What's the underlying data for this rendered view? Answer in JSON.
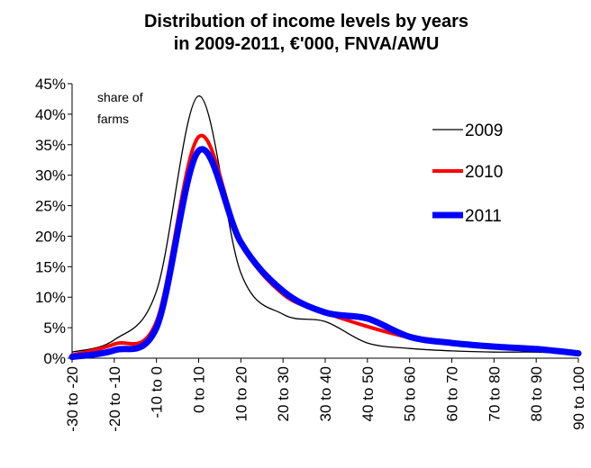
{
  "chart_data": {
    "type": "line",
    "title": "Distribution of income levels by years",
    "subtitle": "in 2009-2011, €'000, FNVA/AWU",
    "annotation": "share of farms",
    "categories": [
      "-30 to -20",
      "-20 to -10",
      "-10 to 0",
      "0 to 10",
      "10 to 20",
      "20 to 30",
      "30 to 40",
      "40 to 50",
      "50 to 60",
      "60 to 70",
      "70 to 80",
      "80 to 90",
      "90 to 100"
    ],
    "y_ticks": [
      "0%",
      "5%",
      "10%",
      "15%",
      "20%",
      "25%",
      "30%",
      "35%",
      "40%",
      "45%"
    ],
    "ylim": [
      0,
      45
    ],
    "grid": false,
    "legend_position": "right",
    "series": [
      {
        "name": "2009",
        "color": "#000000",
        "width": 1.3,
        "values": [
          1.0,
          3.0,
          11.0,
          43.0,
          14.0,
          7.2,
          6.0,
          2.5,
          1.6,
          1.2,
          1.0,
          1.0,
          0.7
        ]
      },
      {
        "name": "2010",
        "color": "#ff0000",
        "width": 4,
        "values": [
          0.5,
          2.3,
          6.0,
          36.3,
          19.0,
          10.5,
          7.5,
          5.2,
          3.4,
          2.5,
          1.8,
          1.4,
          0.8
        ]
      },
      {
        "name": "2011",
        "color": "#0000ff",
        "width": 7,
        "values": [
          0.2,
          1.3,
          5.0,
          34.0,
          19.0,
          11.0,
          7.5,
          6.5,
          3.5,
          2.5,
          1.9,
          1.5,
          0.8
        ]
      }
    ]
  }
}
